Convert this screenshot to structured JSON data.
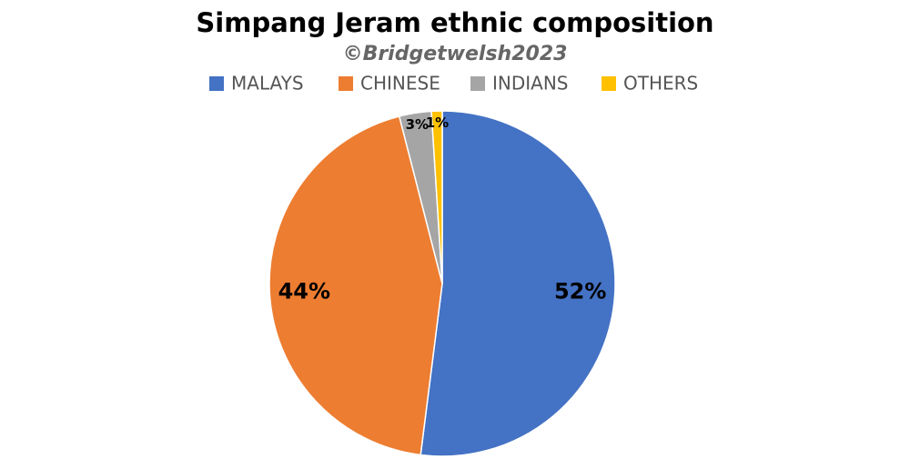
{
  "chart_data": {
    "type": "pie",
    "title": "Simpang Jeram ethnic composition",
    "subtitle": "©Bridgetwelsh2023",
    "categories": [
      "MALAYS",
      "CHINESE",
      "INDIANS",
      "OTHERS"
    ],
    "values": [
      52,
      44,
      3,
      1
    ],
    "value_labels": [
      "52%",
      "44%",
      "3%",
      "1%"
    ],
    "colors": [
      "#4472c4",
      "#ed7d31",
      "#a5a5a5",
      "#ffc000"
    ],
    "legend": "top"
  }
}
